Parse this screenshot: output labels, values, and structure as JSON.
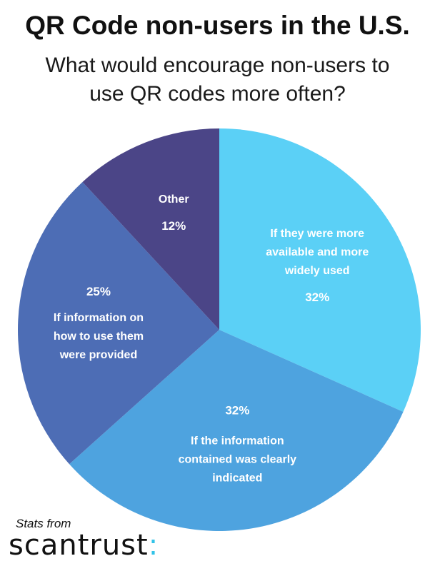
{
  "header": {
    "title": "QR Code non-users in the U.S.",
    "subtitle_line1": "What would encourage non-users to",
    "subtitle_line2": "use QR codes more often?"
  },
  "chart_data": {
    "type": "pie",
    "title": "QR Code non-users in the U.S.",
    "subtitle": "What would encourage non-users to use QR codes more often?",
    "slices": [
      {
        "label_lines": [
          "If they were more",
          "available and more",
          "widely used"
        ],
        "value": 32,
        "value_label": "32%",
        "color": "#5bd0f6"
      },
      {
        "label_lines": [
          "If the information",
          "contained was clearly",
          "indicated"
        ],
        "value": 32,
        "value_label": "32%",
        "color": "#4ea3df"
      },
      {
        "label_lines": [
          "If information on",
          "how to use them",
          "were provided"
        ],
        "value": 25,
        "value_label": "25%",
        "color": "#4d6db5"
      },
      {
        "label_lines": [
          "Other"
        ],
        "value": 12,
        "value_label": "12%",
        "color": "#4b4587"
      }
    ]
  },
  "footer": {
    "stats_text": "Stats from",
    "brand_text": "scantrust",
    "brand_suffix": ":",
    "brand_suffix_color": "#33c3e8"
  }
}
